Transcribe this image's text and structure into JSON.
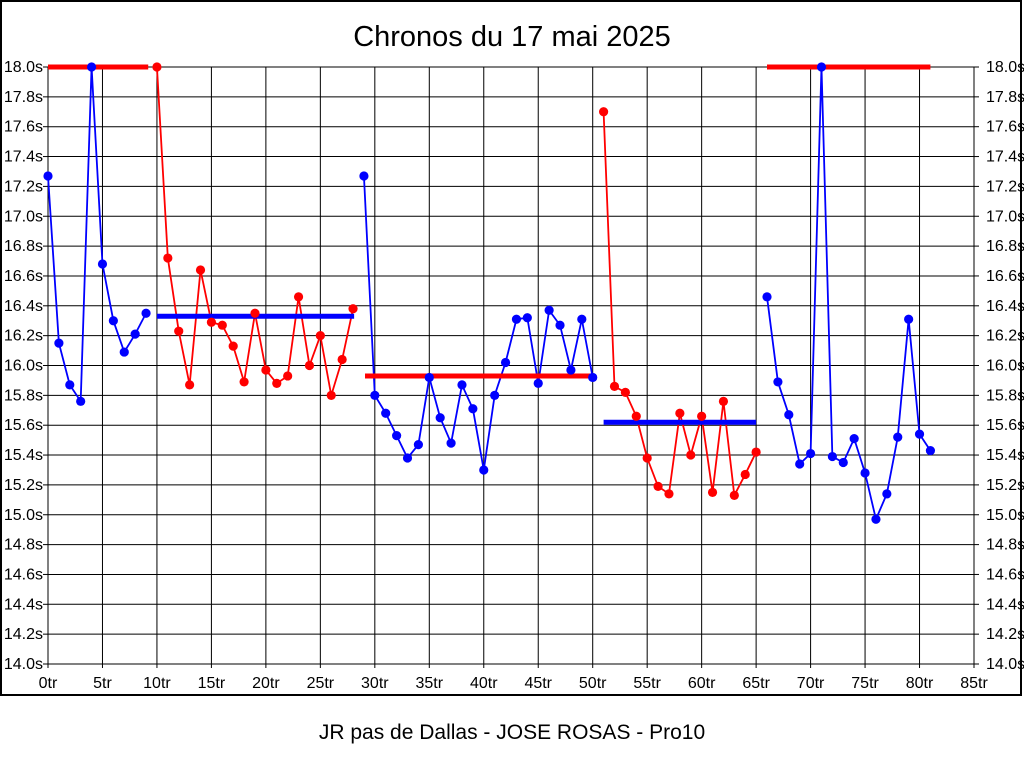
{
  "page": {
    "footer": "JR pas de Dallas - JOSE ROSAS - Pro10"
  },
  "chart_data": {
    "type": "line",
    "title": "Chronos du 17 mai 2025",
    "x_unit": "tr",
    "y_unit": "s",
    "xlim": [
      0,
      85
    ],
    "ylim": [
      14.0,
      18.0
    ],
    "grid": true,
    "legend": "none",
    "colors": {
      "blue": "#0000ff",
      "red": "#ff0000"
    },
    "y_ticks": [
      {
        "value": 18.0,
        "label": "18.0s"
      },
      {
        "value": 17.8,
        "label": "17.8s"
      },
      {
        "value": 17.6,
        "label": "17.6s"
      },
      {
        "value": 17.4,
        "label": "17.4s"
      },
      {
        "value": 17.2,
        "label": "17.2s"
      },
      {
        "value": 17.0,
        "label": "17.0s"
      },
      {
        "value": 16.8,
        "label": "16.8s"
      },
      {
        "value": 16.6,
        "label": "16.6s"
      },
      {
        "value": 16.4,
        "label": "16.4s"
      },
      {
        "value": 16.2,
        "label": "16.2s"
      },
      {
        "value": 16.0,
        "label": "16.0s"
      },
      {
        "value": 15.8,
        "label": "15.8s"
      },
      {
        "value": 15.6,
        "label": "15.6s"
      },
      {
        "value": 15.4,
        "label": "15.4s"
      },
      {
        "value": 15.2,
        "label": "15.2s"
      },
      {
        "value": 15.0,
        "label": "15.0s"
      },
      {
        "value": 14.8,
        "label": "14.8s"
      },
      {
        "value": 14.6,
        "label": "14.6s"
      },
      {
        "value": 14.4,
        "label": "14.4s"
      },
      {
        "value": 14.2,
        "label": "14.2s"
      },
      {
        "value": 14.0,
        "label": "14.0s"
      }
    ],
    "x_ticks": [
      {
        "value": 0,
        "label": "0tr"
      },
      {
        "value": 5,
        "label": "5tr"
      },
      {
        "value": 10,
        "label": "10tr"
      },
      {
        "value": 15,
        "label": "15tr"
      },
      {
        "value": 20,
        "label": "20tr"
      },
      {
        "value": 25,
        "label": "25tr"
      },
      {
        "value": 30,
        "label": "30tr"
      },
      {
        "value": 35,
        "label": "35tr"
      },
      {
        "value": 40,
        "label": "40tr"
      },
      {
        "value": 45,
        "label": "45tr"
      },
      {
        "value": 50,
        "label": "50tr"
      },
      {
        "value": 55,
        "label": "55tr"
      },
      {
        "value": 60,
        "label": "60tr"
      },
      {
        "value": 65,
        "label": "65tr"
      },
      {
        "value": 70,
        "label": "70tr"
      },
      {
        "value": 75,
        "label": "75tr"
      },
      {
        "value": 80,
        "label": "80tr"
      },
      {
        "value": 85,
        "label": "85tr"
      }
    ],
    "series": [
      {
        "name": "segment-1",
        "color": "blue",
        "x_start": 0,
        "values": [
          17.27,
          16.15,
          15.87,
          15.76,
          18.0,
          16.68,
          16.3,
          16.09,
          16.21,
          16.35
        ]
      },
      {
        "name": "segment-2",
        "color": "red",
        "x_start": 10,
        "values": [
          18.0,
          16.72,
          16.23,
          15.87,
          16.64,
          16.29,
          16.27,
          16.13,
          15.89,
          16.35,
          15.97,
          15.88,
          15.93,
          16.46,
          16.0,
          16.2,
          15.8,
          16.04,
          16.38
        ]
      },
      {
        "name": "segment-3",
        "color": "blue",
        "x_start": 29,
        "values": [
          17.27,
          15.8,
          15.68,
          15.53,
          15.38,
          15.47,
          15.92,
          15.65,
          15.48,
          15.87,
          15.71,
          15.3,
          15.8,
          16.02,
          16.31,
          16.32,
          15.88,
          16.37,
          16.27,
          15.97,
          16.31,
          15.92
        ]
      },
      {
        "name": "segment-4",
        "color": "red",
        "x_start": 51,
        "values": [
          17.7,
          15.86,
          15.82,
          15.66,
          15.38,
          15.19,
          15.14,
          15.68,
          15.4,
          15.66,
          15.15,
          15.76,
          15.13,
          15.27,
          15.42
        ]
      },
      {
        "name": "segment-5",
        "color": "blue",
        "x_start": 66,
        "values": [
          16.46,
          15.89,
          15.67,
          15.34,
          15.41,
          18.0,
          15.39,
          15.35,
          15.51,
          15.28,
          14.97,
          15.14,
          15.52,
          16.31,
          15.54,
          15.43
        ]
      }
    ],
    "average_lines": [
      {
        "color": "red",
        "value": 18.0,
        "x_start": 0,
        "x_end": 9.2
      },
      {
        "color": "blue",
        "value": 16.33,
        "x_start": 10,
        "x_end": 28.1
      },
      {
        "color": "red",
        "value": 15.93,
        "x_start": 29.1,
        "x_end": 50
      },
      {
        "color": "blue",
        "value": 15.62,
        "x_start": 51,
        "x_end": 65
      },
      {
        "color": "red",
        "value": 18.0,
        "x_start": 66,
        "x_end": 81
      }
    ]
  }
}
